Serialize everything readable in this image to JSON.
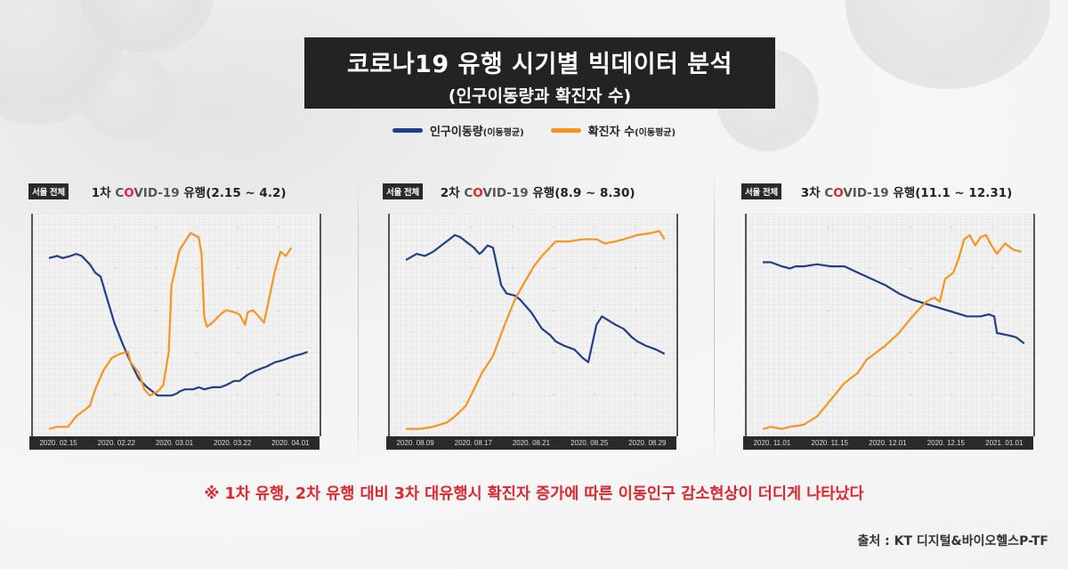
{
  "header": {
    "title": "코로나19 유행 시기별 빅데이터 분석",
    "subtitle": "(인구이동량과 확진자 수)"
  },
  "legend": [
    {
      "label": "인구이동량",
      "sub": "(이동평균)",
      "color": "#1f3f8c"
    },
    {
      "label": "확진자 수",
      "sub": "(이동평균)",
      "color": "#f7941d"
    }
  ],
  "colors": {
    "mobility": "#1f3f8c",
    "cases": "#f7941d",
    "accent_red": "#e0262d",
    "title_bg": "#232323"
  },
  "panels": [
    {
      "badge": "서울 전체",
      "wave": "1차",
      "covid_c": "C",
      "covid_o": "O",
      "covid_rest": "VID-19",
      "suffix": "유행(2.15 ~ 4.2)",
      "dates": [
        "2020. 02.15",
        "2020. 02.22",
        "2020. 03.01",
        "2020. 03.22",
        "2020. 04.01"
      ]
    },
    {
      "badge": "서울 전체",
      "wave": "2차",
      "covid_c": "C",
      "covid_o": "O",
      "covid_rest": "VID-19",
      "suffix": "유행(8.9 ~ 8.30)",
      "dates": [
        "2020. 08.09",
        "2020. 08.17",
        "2020. 08.21",
        "2020. 08.25",
        "2020. 08.29"
      ]
    },
    {
      "badge": "서울 전체",
      "wave": "3차",
      "covid_c": "C",
      "covid_o": "O",
      "covid_rest": "VID-19",
      "suffix": "유행(11.1 ~ 12.31)",
      "dates": [
        "2020. 11.01",
        "2020. 11.15",
        "2020. 12.01",
        "2020. 12.15",
        "2021. 01.01"
      ]
    }
  ],
  "note": "※ 1차 유행, 2차 유행 대비 3차 대유행시 확진자 증가에 따른 이동인구 감소현상이 더디게 나타났다",
  "source": "출처 : KT 디지털&바이오헬스P-TF",
  "chart_data": [
    {
      "type": "line",
      "title": "서울 전체 1차 COVID-19 유행(2.15 ~ 4.2)",
      "xlabel": "",
      "ylabel": "",
      "x_ticks": [
        "2020. 02.15",
        "2020. 02.22",
        "2020. 03.01",
        "2020. 03.22",
        "2020. 04.01"
      ],
      "grid": true,
      "legend_position": "top",
      "y_units": "normalized (0=bottom, 100=top), no axis values shown",
      "series": [
        {
          "name": "인구이동량(이동평균)",
          "color": "#1f3f8c",
          "points": [
            [
              0,
              83
            ],
            [
              3,
              84
            ],
            [
              5,
              83
            ],
            [
              8,
              84
            ],
            [
              10,
              85
            ],
            [
              12,
              84
            ],
            [
              15,
              80
            ],
            [
              17,
              76
            ],
            [
              19,
              74
            ],
            [
              21,
              65
            ],
            [
              24,
              52
            ],
            [
              27,
              42
            ],
            [
              30,
              33
            ],
            [
              33,
              25
            ],
            [
              36,
              21
            ],
            [
              40,
              17
            ],
            [
              42,
              17
            ],
            [
              45,
              17
            ],
            [
              47,
              18
            ],
            [
              48,
              19
            ],
            [
              50,
              20
            ],
            [
              53,
              20
            ],
            [
              55,
              21
            ],
            [
              57,
              20
            ],
            [
              60,
              21
            ],
            [
              63,
              21
            ],
            [
              65,
              22
            ],
            [
              68,
              24
            ],
            [
              70,
              24
            ],
            [
              73,
              27
            ],
            [
              76,
              29
            ],
            [
              80,
              31
            ],
            [
              83,
              33
            ],
            [
              86,
              34
            ],
            [
              90,
              36
            ],
            [
              93,
              37
            ],
            [
              95,
              38
            ]
          ]
        },
        {
          "name": "확진자 수(이동평균)",
          "color": "#f7941d",
          "points": [
            [
              0,
              1
            ],
            [
              3,
              2
            ],
            [
              7,
              2
            ],
            [
              10,
              7
            ],
            [
              15,
              12
            ],
            [
              17,
              20
            ],
            [
              20,
              29
            ],
            [
              23,
              35
            ],
            [
              26,
              37
            ],
            [
              29,
              38
            ],
            [
              30,
              33
            ],
            [
              33,
              28
            ],
            [
              35,
              20
            ],
            [
              37,
              17
            ],
            [
              40,
              19
            ],
            [
              42,
              22
            ],
            [
              44,
              38
            ],
            [
              45,
              70
            ],
            [
              48,
              87
            ],
            [
              52,
              95
            ],
            [
              55,
              93
            ],
            [
              56,
              85
            ],
            [
              57,
              55
            ],
            [
              58,
              50
            ],
            [
              60,
              52
            ],
            [
              63,
              56
            ],
            [
              65,
              58
            ],
            [
              68,
              57
            ],
            [
              70,
              56
            ],
            [
              72,
              51
            ],
            [
              73,
              57
            ],
            [
              75,
              58
            ],
            [
              79,
              52
            ],
            [
              83,
              77
            ],
            [
              85,
              86
            ],
            [
              87,
              84
            ],
            [
              89,
              88
            ]
          ]
        }
      ]
    },
    {
      "type": "line",
      "title": "서울 전체 2차 COVID-19 유행(8.9 ~ 8.30)",
      "xlabel": "",
      "ylabel": "",
      "x_ticks": [
        "2020. 08.09",
        "2020. 08.17",
        "2020. 08.21",
        "2020. 08.25",
        "2020. 08.29"
      ],
      "grid": true,
      "legend_position": "top",
      "y_units": "normalized (0=bottom, 100=top), no axis values shown",
      "series": [
        {
          "name": "인구이동량(이동평균)",
          "color": "#1f3f8c",
          "points": [
            [
              0,
              82
            ],
            [
              4,
              85
            ],
            [
              7,
              84
            ],
            [
              10,
              86
            ],
            [
              13,
              89
            ],
            [
              16,
              92
            ],
            [
              18,
              94
            ],
            [
              20,
              93
            ],
            [
              22,
              91
            ],
            [
              25,
              88
            ],
            [
              27,
              85
            ],
            [
              28,
              86
            ],
            [
              30,
              89
            ],
            [
              32,
              88
            ],
            [
              35,
              70
            ],
            [
              37,
              66
            ],
            [
              40,
              65
            ],
            [
              42,
              63
            ],
            [
              46,
              57
            ],
            [
              50,
              49
            ],
            [
              53,
              46
            ],
            [
              55,
              43
            ],
            [
              58,
              41
            ],
            [
              62,
              39
            ],
            [
              65,
              35
            ],
            [
              67,
              33
            ],
            [
              68,
              39
            ],
            [
              70,
              51
            ],
            [
              72,
              55
            ],
            [
              77,
              51
            ],
            [
              80,
              49
            ],
            [
              83,
              45
            ],
            [
              85,
              43
            ],
            [
              88,
              41
            ],
            [
              92,
              39
            ],
            [
              95,
              37
            ]
          ]
        },
        {
          "name": "확진자 수(이동평균)",
          "color": "#f7941d",
          "points": [
            [
              0,
              1
            ],
            [
              5,
              1
            ],
            [
              10,
              2
            ],
            [
              15,
              4
            ],
            [
              18,
              7
            ],
            [
              22,
              12
            ],
            [
              25,
              20
            ],
            [
              28,
              28
            ],
            [
              32,
              36
            ],
            [
              36,
              50
            ],
            [
              40,
              63
            ],
            [
              43,
              70
            ],
            [
              47,
              79
            ],
            [
              50,
              84
            ],
            [
              55,
              91
            ],
            [
              60,
              91
            ],
            [
              65,
              92
            ],
            [
              70,
              92
            ],
            [
              73,
              90
            ],
            [
              77,
              91
            ],
            [
              80,
              92
            ],
            [
              85,
              94
            ],
            [
              90,
              95
            ],
            [
              93,
              96
            ],
            [
              95,
              92
            ]
          ]
        }
      ]
    },
    {
      "type": "line",
      "title": "서울 전체 3차 COVID-19 유행(11.1 ~ 12.31)",
      "xlabel": "",
      "ylabel": "",
      "x_ticks": [
        "2020. 11.01",
        "2020. 11.15",
        "2020. 12.01",
        "2020. 12.15",
        "2021. 01.01"
      ],
      "grid": true,
      "legend_position": "top",
      "y_units": "normalized (0=bottom, 100=top), no axis values shown",
      "series": [
        {
          "name": "인구이동량(이동평균)",
          "color": "#1f3f8c",
          "points": [
            [
              0,
              81
            ],
            [
              3,
              81
            ],
            [
              7,
              79
            ],
            [
              10,
              78
            ],
            [
              12,
              79
            ],
            [
              15,
              79
            ],
            [
              20,
              80
            ],
            [
              25,
              79
            ],
            [
              30,
              79
            ],
            [
              35,
              76
            ],
            [
              40,
              73
            ],
            [
              45,
              70
            ],
            [
              50,
              66
            ],
            [
              55,
              63
            ],
            [
              60,
              61
            ],
            [
              65,
              59
            ],
            [
              70,
              57
            ],
            [
              75,
              55
            ],
            [
              80,
              55
            ],
            [
              83,
              56
            ],
            [
              85,
              55
            ],
            [
              86,
              47
            ],
            [
              90,
              46
            ],
            [
              93,
              45
            ],
            [
              96,
              42
            ]
          ]
        },
        {
          "name": "확진자 수(이동평균)",
          "color": "#f7941d",
          "points": [
            [
              0,
              1
            ],
            [
              3,
              2
            ],
            [
              7,
              1
            ],
            [
              10,
              2
            ],
            [
              15,
              3
            ],
            [
              20,
              7
            ],
            [
              25,
              15
            ],
            [
              30,
              23
            ],
            [
              35,
              28
            ],
            [
              38,
              34
            ],
            [
              42,
              38
            ],
            [
              45,
              41
            ],
            [
              50,
              47
            ],
            [
              55,
              55
            ],
            [
              60,
              62
            ],
            [
              63,
              64
            ],
            [
              65,
              62
            ],
            [
              67,
              73
            ],
            [
              70,
              76
            ],
            [
              72,
              83
            ],
            [
              74,
              92
            ],
            [
              76,
              94
            ],
            [
              78,
              89
            ],
            [
              80,
              93
            ],
            [
              82,
              94
            ],
            [
              84,
              89
            ],
            [
              86,
              85
            ],
            [
              89,
              90
            ],
            [
              92,
              87
            ],
            [
              95,
              86
            ]
          ]
        }
      ]
    }
  ]
}
